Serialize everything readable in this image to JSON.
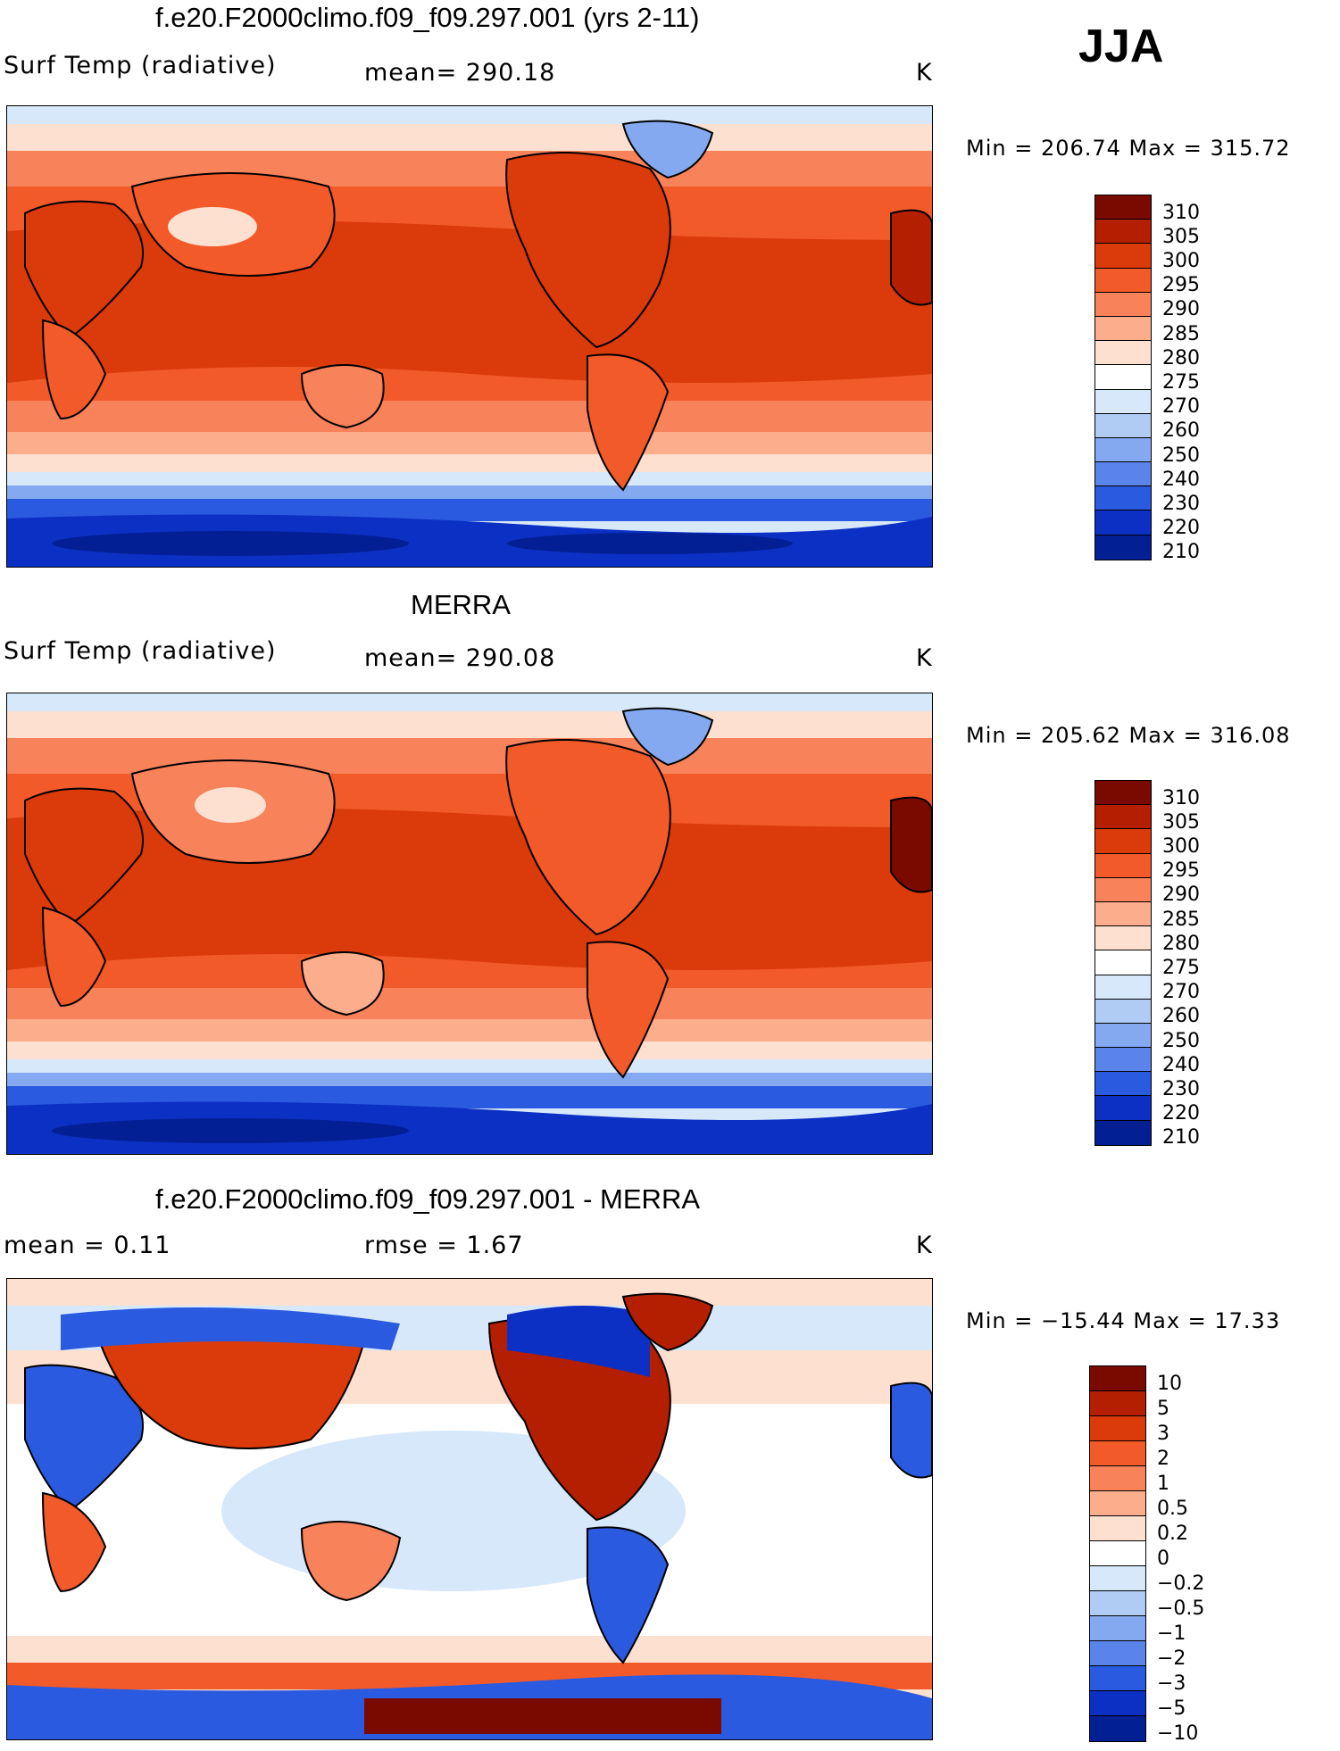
{
  "season": "JJA",
  "colors": {
    "abs_levels": [
      "#7a0a00",
      "#b31f00",
      "#db3a0a",
      "#f25a2a",
      "#f8825a",
      "#fbad8c",
      "#fde0cf",
      "#ffffff",
      "#d6e8fa",
      "#b0ccf5",
      "#84a9f0",
      "#5b84ea",
      "#2a5ae0",
      "#0c30c4",
      "#031f94"
    ],
    "diff_levels": [
      "#7a0a00",
      "#b31f00",
      "#db3a0a",
      "#f25a2a",
      "#f8825a",
      "#fbad8c",
      "#fde0cf",
      "#ffffff",
      "#d6e8fa",
      "#b0ccf5",
      "#84a9f0",
      "#5b84ea",
      "#2a5ae0",
      "#0c30c4",
      "#031f94"
    ]
  },
  "panels": [
    {
      "title": "f.e20.F2000climo.f09_f09.297.001 (yrs 2-11)",
      "left_label": "Surf Temp (radiative)",
      "center_label": "mean= 290.18",
      "units": "K",
      "minmax": "Min = 206.74 Max = 315.72",
      "colorbar_labels": [
        "310",
        "305",
        "300",
        "295",
        "290",
        "285",
        "280",
        "275",
        "270",
        "260",
        "250",
        "240",
        "230",
        "220",
        "210"
      ],
      "kind": "abs"
    },
    {
      "title": "MERRA",
      "left_label": "Surf Temp (radiative)",
      "center_label": "mean= 290.08",
      "units": "K",
      "minmax": "Min = 205.62 Max = 316.08",
      "colorbar_labels": [
        "310",
        "305",
        "300",
        "295",
        "290",
        "285",
        "280",
        "275",
        "270",
        "260",
        "250",
        "240",
        "230",
        "220",
        "210"
      ],
      "kind": "abs"
    },
    {
      "title": "f.e20.F2000climo.f09_f09.297.001 - MERRA",
      "left_label": "mean =    0.11",
      "center_label": "rmse =    1.67",
      "units": "K",
      "minmax": "Min = −15.44 Max =  17.33",
      "colorbar_labels": [
        "10",
        "5",
        "3",
        "2",
        "1",
        "0.5",
        "0.2",
        "0",
        "−0.2",
        "−0.5",
        "−1",
        "−2",
        "−3",
        "−5",
        "−10"
      ],
      "kind": "diff"
    }
  ]
}
